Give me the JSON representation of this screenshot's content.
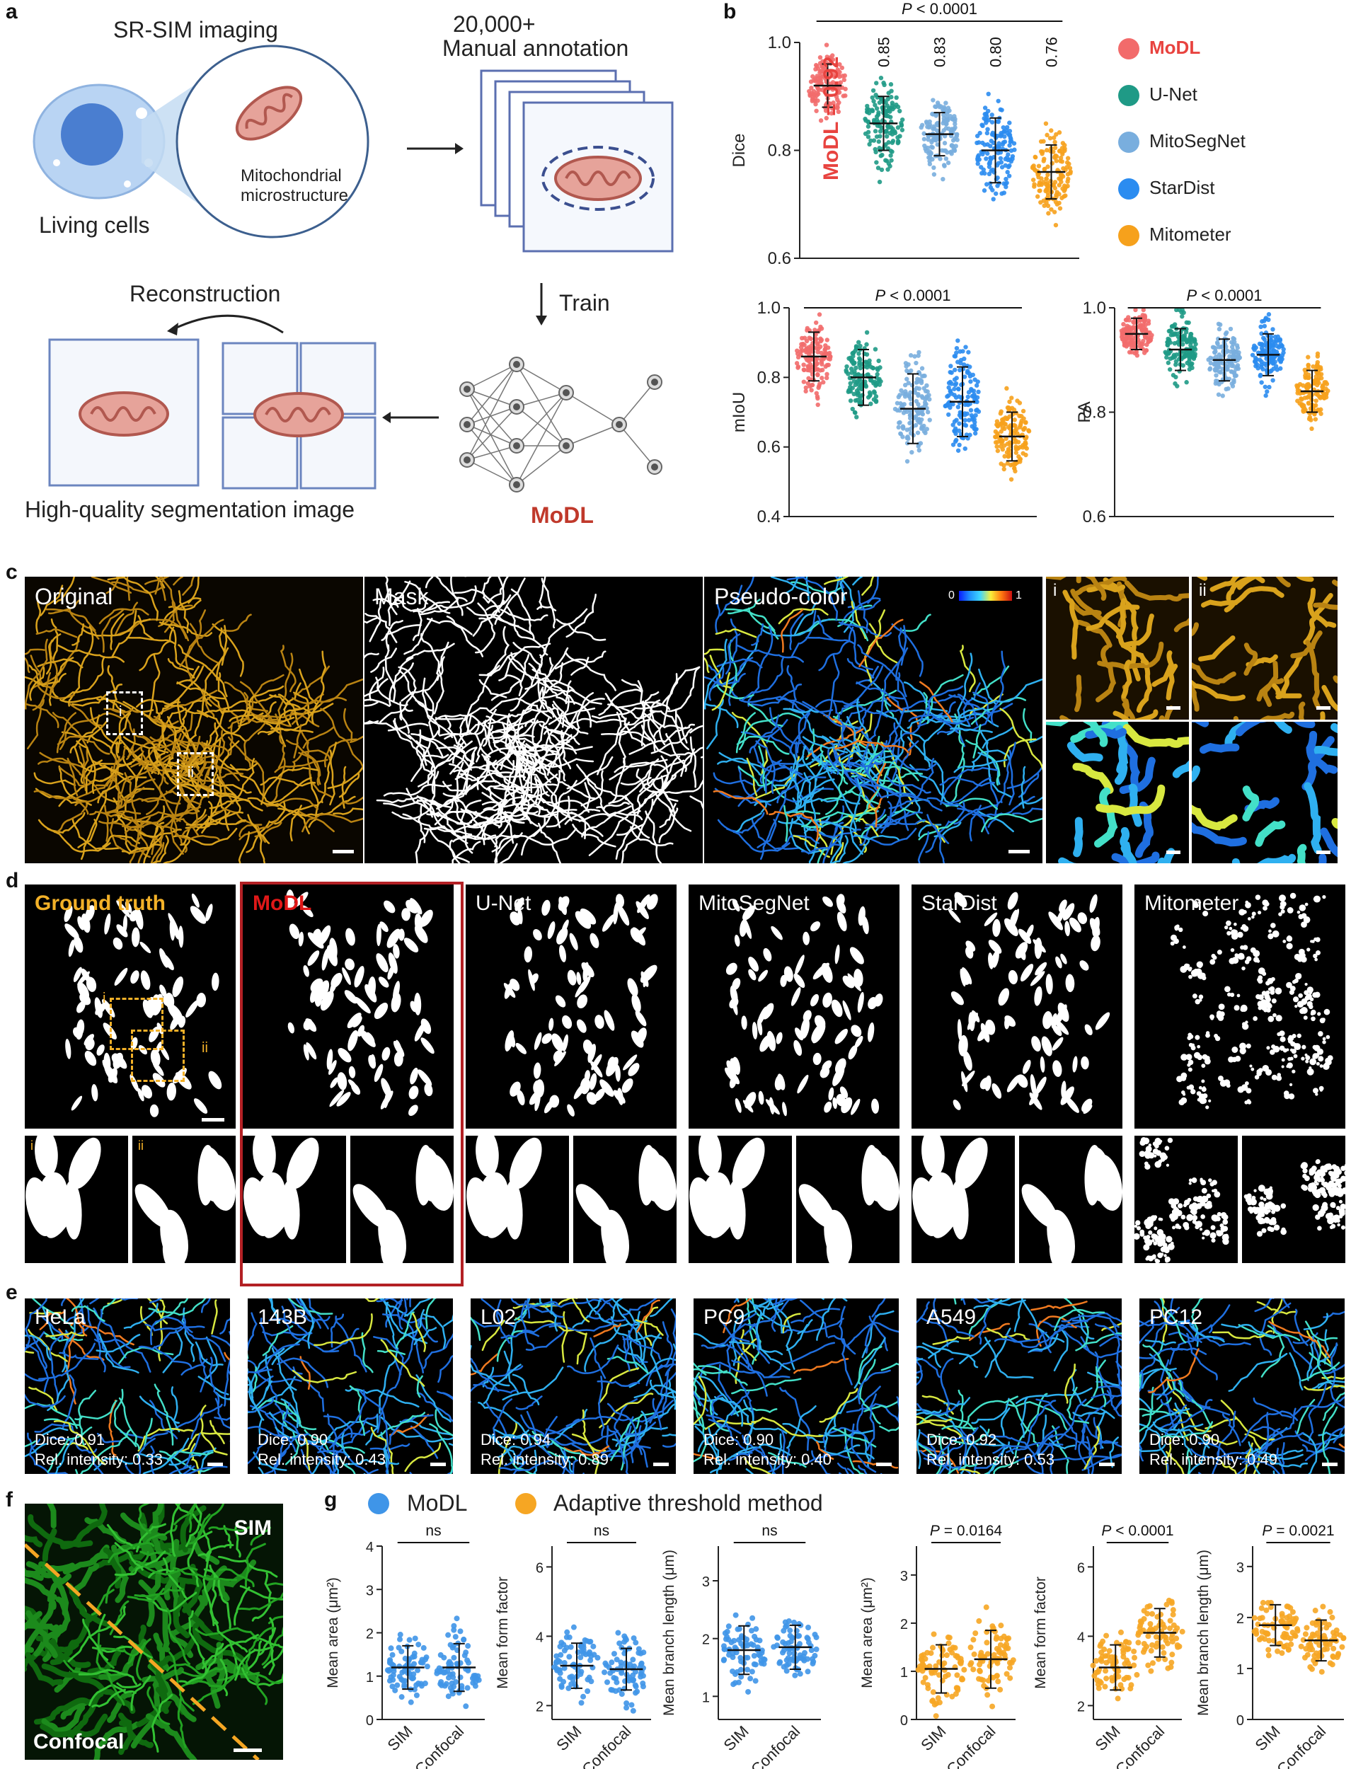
{
  "panel_letters": [
    "a",
    "b",
    "c",
    "d",
    "e",
    "f",
    "g"
  ],
  "colors": {
    "modl": "#f26b6b",
    "unet": "#1f9a86",
    "mitosegnet": "#79aede",
    "stardist": "#2b8cf0",
    "mitometer": "#f6a11c",
    "modl_blue": "#3f95e8",
    "adaptive_orange": "#f6a623",
    "highlight_red": "#b32024",
    "ground_truth_label": "#f3b128"
  },
  "panel_a": {
    "sim_title": "SR-SIM imaging",
    "living_cells": "Living cells",
    "mito_label_1": "Mitochondrial",
    "mito_label_2": "microstructure",
    "annotation_count": "20,000+",
    "annotation_label": "Manual annotation",
    "train_label": "Train",
    "reconstruction_label": "Reconstruction",
    "output_label": "High-quality segmentation image",
    "model_name": "MoDL"
  },
  "panel_b": {
    "legend": [
      "MoDL",
      "U-Net",
      "MitoSegNet",
      "StarDist",
      "Mitometer"
    ],
    "modl_dice_annotation": "MoDL = 0.92",
    "p_label": "P < 0.0001",
    "dice_values_text": [
      "0.85",
      "0.83",
      "0.80",
      "0.76"
    ],
    "icons": [
      "legend-dot-icon"
    ]
  },
  "chart_data": [
    {
      "type": "scatter",
      "ylabel": "Dice",
      "ylim": [
        0.6,
        1.0
      ],
      "yticks": [
        "0.6",
        "0.8",
        "1.0"
      ],
      "categories": [
        "MoDL",
        "U-Net",
        "MitoSegNet",
        "StarDist",
        "Mitometer"
      ],
      "mean": [
        0.92,
        0.85,
        0.83,
        0.8,
        0.76
      ],
      "sd": [
        0.04,
        0.05,
        0.04,
        0.06,
        0.05
      ],
      "annotation": "P < 0.0001"
    },
    {
      "type": "scatter",
      "ylabel": "mIoU",
      "ylim": [
        0.4,
        1.0
      ],
      "yticks": [
        "0.4",
        "0.6",
        "0.8",
        "1.0"
      ],
      "categories": [
        "MoDL",
        "U-Net",
        "MitoSegNet",
        "StarDist",
        "Mitometer"
      ],
      "mean": [
        0.86,
        0.8,
        0.71,
        0.73,
        0.63
      ],
      "sd": [
        0.07,
        0.08,
        0.1,
        0.1,
        0.07
      ],
      "annotation": "P < 0.0001"
    },
    {
      "type": "scatter",
      "ylabel": "PA",
      "ylim": [
        0.6,
        1.0
      ],
      "yticks": [
        "0.6",
        "0.8",
        "1.0"
      ],
      "categories": [
        "MoDL",
        "U-Net",
        "MitoSegNet",
        "StarDist",
        "Mitometer"
      ],
      "mean": [
        0.95,
        0.92,
        0.9,
        0.91,
        0.84
      ],
      "sd": [
        0.03,
        0.04,
        0.04,
        0.04,
        0.04
      ],
      "annotation": "P < 0.0001"
    },
    {
      "type": "scatter",
      "method": "MoDL",
      "ylabel": "Mean area (μm²)",
      "ylim": [
        0,
        4
      ],
      "yticks": [
        "0",
        "1",
        "2",
        "3",
        "4"
      ],
      "categories": [
        "SIM",
        "Confocal"
      ],
      "mean": [
        1.2,
        1.2
      ],
      "sd": [
        0.5,
        0.55
      ],
      "annotation": "ns"
    },
    {
      "type": "scatter",
      "method": "MoDL",
      "ylabel": "Mean form factor",
      "ylim": [
        1.6,
        6.6
      ],
      "yticks": [
        "2",
        "4",
        "6"
      ],
      "categories": [
        "SIM",
        "Confocal"
      ],
      "mean": [
        3.15,
        3.05
      ],
      "sd": [
        0.65,
        0.6
      ],
      "annotation": "ns"
    },
    {
      "type": "scatter",
      "method": "MoDL",
      "ylabel": "Mean branch length (μm)",
      "ylim": [
        0.6,
        3.6
      ],
      "yticks": [
        "1",
        "2",
        "3"
      ],
      "categories": [
        "SIM",
        "Confocal"
      ],
      "mean": [
        1.8,
        1.85
      ],
      "sd": [
        0.42,
        0.38
      ],
      "annotation": "ns"
    },
    {
      "type": "scatter",
      "method": "Adaptive threshold method",
      "ylabel": "Mean area (μm²)",
      "ylim": [
        0,
        3.6
      ],
      "yticks": [
        "0",
        "1",
        "2",
        "3"
      ],
      "categories": [
        "SIM",
        "Confocal"
      ],
      "mean": [
        1.05,
        1.25
      ],
      "sd": [
        0.5,
        0.6
      ],
      "annotation": "P = 0.0164"
    },
    {
      "type": "scatter",
      "method": "Adaptive threshold method",
      "ylabel": "Mean form factor",
      "ylim": [
        1.6,
        6.6
      ],
      "yticks": [
        "2",
        "4",
        "6"
      ],
      "categories": [
        "SIM",
        "Confocal"
      ],
      "mean": [
        3.1,
        4.1
      ],
      "sd": [
        0.65,
        0.7
      ],
      "annotation": "P < 0.0001"
    },
    {
      "type": "scatter",
      "method": "Adaptive threshold method",
      "ylabel": "Mean branch length (μm)",
      "ylim": [
        0,
        3.4
      ],
      "yticks": [
        "0",
        "1",
        "2",
        "3"
      ],
      "categories": [
        "SIM",
        "Confocal"
      ],
      "mean": [
        1.85,
        1.55
      ],
      "sd": [
        0.4,
        0.4
      ],
      "annotation": "P = 0.0021"
    }
  ],
  "panel_c": {
    "tiles": [
      "Original",
      "Mask",
      "Pseudo-color"
    ],
    "colorbar_min": "0",
    "colorbar_max": "1",
    "roi_labels": [
      "i",
      "ii"
    ]
  },
  "panel_d": {
    "tiles": [
      "Ground truth",
      "MoDL",
      "U-Net",
      "MitoSegNet",
      "StarDist",
      "Mitometer"
    ],
    "roi_labels": [
      "i",
      "ii"
    ]
  },
  "panel_e": {
    "tiles": [
      {
        "name": "HeLa",
        "dice": "Dice: 0.91",
        "rel": "Rel. intensity: 0.33"
      },
      {
        "name": "143B",
        "dice": "Dice: 0.90",
        "rel": "Rel. intensity: 0.43"
      },
      {
        "name": "L02",
        "dice": "Dice: 0.94",
        "rel": "Rel. intensity: 0.89"
      },
      {
        "name": "PC9",
        "dice": "Dice: 0.90",
        "rel": "Rel. intensity: 0.40"
      },
      {
        "name": "A549",
        "dice": "Dice: 0.92",
        "rel": "Rel. intensity: 0.53"
      },
      {
        "name": "PC12",
        "dice": "Dice: 0.90",
        "rel": "Rel. intensity: 0.49"
      }
    ]
  },
  "panel_f": {
    "sim": "SIM",
    "confocal": "Confocal"
  },
  "panel_g": {
    "legend": [
      "MoDL",
      "Adaptive threshold method"
    ],
    "xlabels": [
      "SIM",
      "Confocal"
    ]
  }
}
